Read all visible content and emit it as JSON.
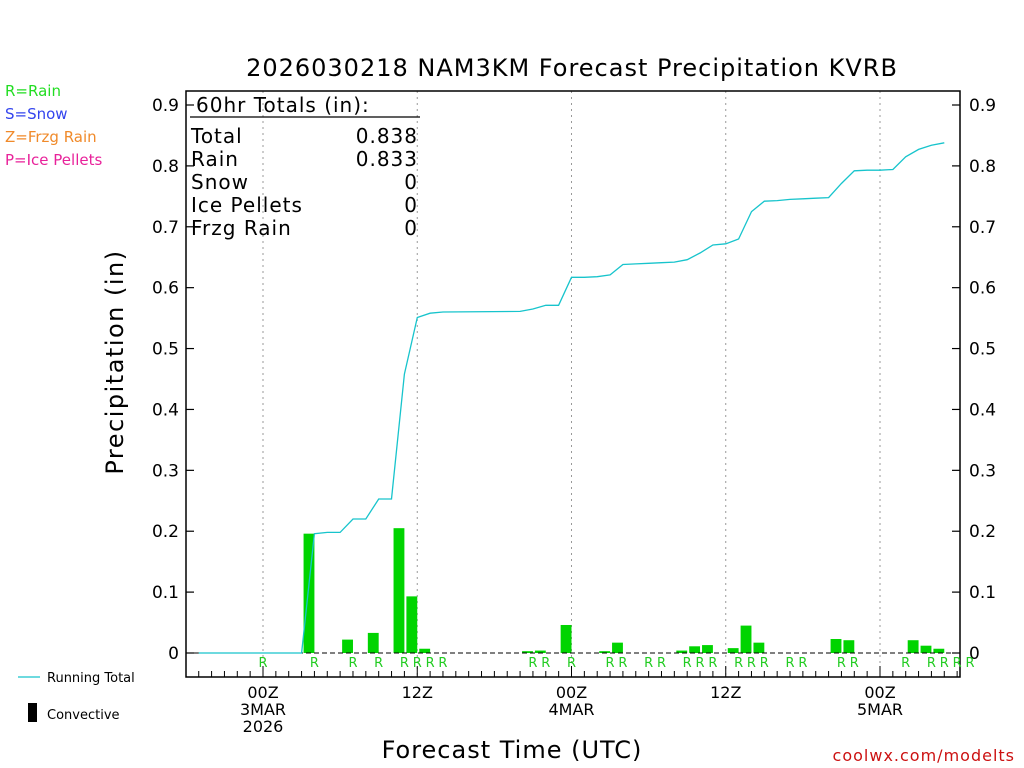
{
  "chart_data": {
    "type": "bar",
    "title": "2026030218 NAM3KM Forecast Precipitation KVRB",
    "xlabel": "Forecast Time (UTC)",
    "ylabel": "Precipitation (in)",
    "ylim": [
      0,
      0.92
    ],
    "yticks": [
      0,
      0.1,
      0.2,
      0.3,
      0.4,
      0.5,
      0.6,
      0.7,
      0.8,
      0.9
    ],
    "ytick_labels": [
      "0",
      "0.1",
      "0.2",
      "0.3",
      "0.4",
      "0.5",
      "0.6",
      "0.7",
      "0.8",
      "0.9"
    ],
    "xlim": [
      -5,
      54
    ],
    "xticks": [
      {
        "hour": 0,
        "lines": [
          "00Z",
          "3MAR",
          "2026"
        ]
      },
      {
        "hour": 12,
        "lines": [
          "12Z"
        ]
      },
      {
        "hour": 24,
        "lines": [
          "00Z",
          "4MAR"
        ]
      },
      {
        "hour": 36,
        "lines": [
          "12Z"
        ]
      },
      {
        "hour": 48,
        "lines": [
          "00Z",
          "5MAR"
        ]
      }
    ],
    "grid_hours": [
      0,
      12,
      24,
      36,
      48
    ],
    "bar_hours": [
      4,
      7,
      9,
      11,
      12,
      13,
      21,
      22,
      24,
      27,
      28,
      33,
      34,
      35,
      37,
      38,
      39,
      45,
      46,
      51,
      52,
      53
    ],
    "bar_values": [
      0.196,
      0.022,
      0.033,
      0.205,
      0.093,
      0.007,
      0.003,
      0.004,
      0.046,
      0.003,
      0.017,
      0.004,
      0.011,
      0.013,
      0.008,
      0.045,
      0.017,
      0.023,
      0.021,
      0.021,
      0.012,
      0.007
    ],
    "series": [
      {
        "name": "Running Total",
        "color": "#17c4cc",
        "x": [
          -5,
          3,
          4,
          5,
          6,
          7,
          8,
          9,
          10,
          11,
          12,
          13,
          14,
          20,
          21,
          22,
          23,
          24,
          25,
          26,
          27,
          28,
          29,
          30,
          31,
          32,
          33,
          34,
          35,
          36,
          37,
          38,
          39,
          40,
          41,
          42,
          43,
          44,
          45,
          46,
          47,
          48,
          49,
          50,
          51,
          52,
          53
        ],
        "y": [
          0.0,
          0.0,
          0.196,
          0.198,
          0.198,
          0.22,
          0.22,
          0.253,
          0.253,
          0.458,
          0.551,
          0.558,
          0.56,
          0.561,
          0.565,
          0.571,
          0.571,
          0.617,
          0.617,
          0.618,
          0.621,
          0.638,
          0.639,
          0.64,
          0.641,
          0.642,
          0.646,
          0.657,
          0.67,
          0.672,
          0.68,
          0.725,
          0.742,
          0.743,
          0.745,
          0.746,
          0.747,
          0.748,
          0.771,
          0.792,
          0.793,
          0.793,
          0.794,
          0.815,
          0.827,
          0.834,
          0.838
        ]
      }
    ],
    "precip_type_marks": [
      {
        "hour": 0,
        "label": "R"
      },
      {
        "hour": 4,
        "label": "R"
      },
      {
        "hour": 7,
        "label": "R"
      },
      {
        "hour": 9,
        "label": "R"
      },
      {
        "hour": 11,
        "label": "R"
      },
      {
        "hour": 12,
        "label": "R"
      },
      {
        "hour": 13,
        "label": "R"
      },
      {
        "hour": 14,
        "label": "R"
      },
      {
        "hour": 21,
        "label": "R"
      },
      {
        "hour": 22,
        "label": "R"
      },
      {
        "hour": 24,
        "label": "R"
      },
      {
        "hour": 27,
        "label": "R"
      },
      {
        "hour": 28,
        "label": "R"
      },
      {
        "hour": 30,
        "label": "R"
      },
      {
        "hour": 31,
        "label": "R"
      },
      {
        "hour": 33,
        "label": "R"
      },
      {
        "hour": 34,
        "label": "R"
      },
      {
        "hour": 35,
        "label": "R"
      },
      {
        "hour": 37,
        "label": "R"
      },
      {
        "hour": 38,
        "label": "R"
      },
      {
        "hour": 39,
        "label": "R"
      },
      {
        "hour": 41,
        "label": "R"
      },
      {
        "hour": 42,
        "label": "R"
      },
      {
        "hour": 45,
        "label": "R"
      },
      {
        "hour": 46,
        "label": "R"
      },
      {
        "hour": 50,
        "label": "R"
      },
      {
        "hour": 52,
        "label": "R"
      },
      {
        "hour": 53,
        "label": "R"
      },
      {
        "hour": 54,
        "label": "R"
      },
      {
        "hour": 55,
        "label": "R"
      }
    ],
    "totals_box": {
      "heading": "60hr Totals (in):",
      "rows": [
        {
          "label": "Total",
          "value": "0.838"
        },
        {
          "label": "Rain",
          "value": "0.833"
        },
        {
          "label": "Snow",
          "value": "0"
        },
        {
          "label": "Ice Pellets",
          "value": "0"
        },
        {
          "label": "Frzg Rain",
          "value": "0"
        }
      ]
    },
    "type_legend": [
      {
        "text": "R=Rain",
        "color": "#22dd22"
      },
      {
        "text": "S=Snow",
        "color": "#3344ee"
      },
      {
        "text": "Z=Frzg Rain",
        "color": "#f08a2a"
      },
      {
        "text": "P=Ice Pellets",
        "color": "#e8229a"
      }
    ],
    "bottom_legend": {
      "running_total": "Running Total",
      "convective": "Convective"
    },
    "bar_color": "#00d400",
    "credit": "coolwx.com/modelts"
  }
}
